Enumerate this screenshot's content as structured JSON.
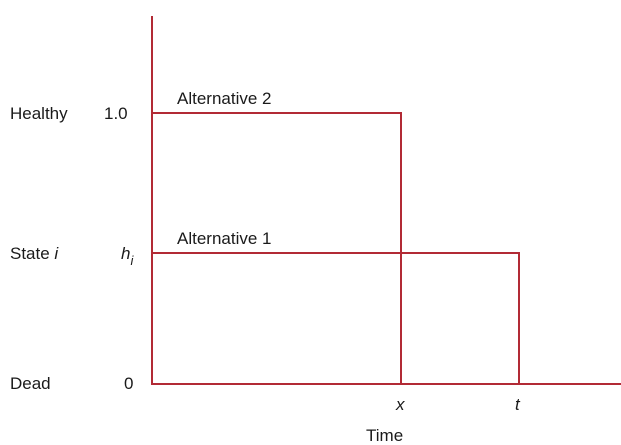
{
  "colors": {
    "line": "#b22a35",
    "text": "#1a1a1a"
  },
  "y_axis": {
    "levels": [
      {
        "name": "Healthy",
        "value": "1.0"
      },
      {
        "name": "State ",
        "name_italic": "i",
        "value": "h",
        "value_sub": "i"
      },
      {
        "name": "Dead",
        "value": "0"
      }
    ]
  },
  "x_axis": {
    "title": "Time",
    "ticks": [
      "x",
      "t"
    ]
  },
  "alternatives": [
    {
      "label": "Alternative 2"
    },
    {
      "label": "Alternative 1"
    }
  ]
}
